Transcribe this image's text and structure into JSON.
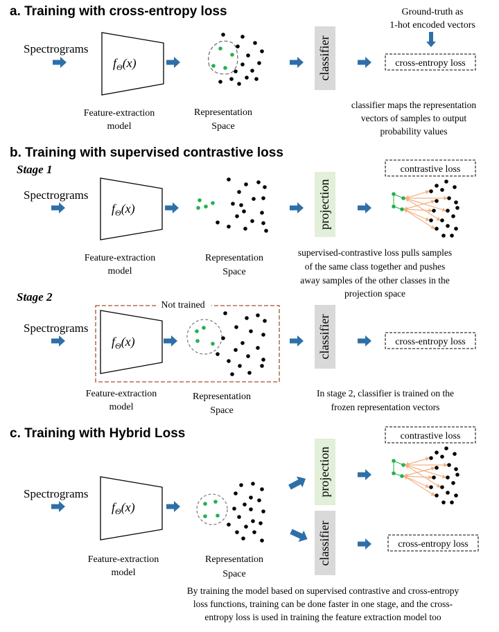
{
  "colors": {
    "arrow": "#2e6fa8",
    "classifier_fill": "#d9d9d9",
    "projection_fill": "#e2efd9",
    "green_dot": "#22b14c",
    "black_dot": "#000000",
    "pull_push_arrow": "#f4b183",
    "not_trained_border": "#a0522d"
  },
  "section_a": {
    "title": "a. Training with cross-entropy loss",
    "input": "Spectrograms",
    "model_caption_1": "Feature-extraction",
    "model_caption_2": "model",
    "rep_caption_1": "Representation",
    "rep_caption_2": "Space",
    "classifier": "classifier",
    "ground_truth_1": "Ground-truth  as",
    "ground_truth_2": "1-hot encoded vectors",
    "loss": "cross-entropy loss",
    "note_1": "classifier  maps the representation",
    "note_2": "vectors of samples to output",
    "note_3": "probability values"
  },
  "section_b": {
    "title": "b. Training with supervised contrastive loss",
    "stage1": {
      "label": "Stage 1",
      "input": "Spectrograms",
      "model_caption_1": "Feature-extraction",
      "model_caption_2": "model",
      "rep_caption_1": "Representation",
      "rep_caption_2": "Space",
      "projection": "projection",
      "loss": "contrastive  loss",
      "note_1": "supervised-contrastive loss pulls samples",
      "note_2": "of the same class together and pushes",
      "note_3": "away samples of the other classes in the",
      "note_4": "projection space"
    },
    "stage2": {
      "label": "Stage 2",
      "not_trained": "Not trained",
      "input": "Spectrograms",
      "model_caption_1": "Feature-extraction",
      "model_caption_2": "model",
      "rep_caption_1": "Representation",
      "rep_caption_2": "Space",
      "classifier": "classifier",
      "loss": "cross-entropy loss",
      "note_1": "In stage 2, classifier  is trained on the",
      "note_2": "frozen  representation vectors"
    }
  },
  "section_c": {
    "title": "c. Training with Hybrid Loss",
    "input": "Spectrograms",
    "model_caption_1": "Feature-extraction",
    "model_caption_2": "model",
    "rep_caption_1": "Representation",
    "rep_caption_2": "Space",
    "projection": "projection",
    "classifier": "classifier",
    "loss_contrastive": "contrastive  loss",
    "loss_ce": "cross-entropy loss",
    "note_1": "By training  the model based on supervised  contrastive   and cross-entropy",
    "note_2": "loss functions,  training  can be done faster  in  one  stage,  and the  cross-",
    "note_3": "entropy loss is used in training  the feature extraction model too"
  },
  "model_function": {
    "f": "f",
    "sub": "Θ",
    "arg": "(x)"
  }
}
